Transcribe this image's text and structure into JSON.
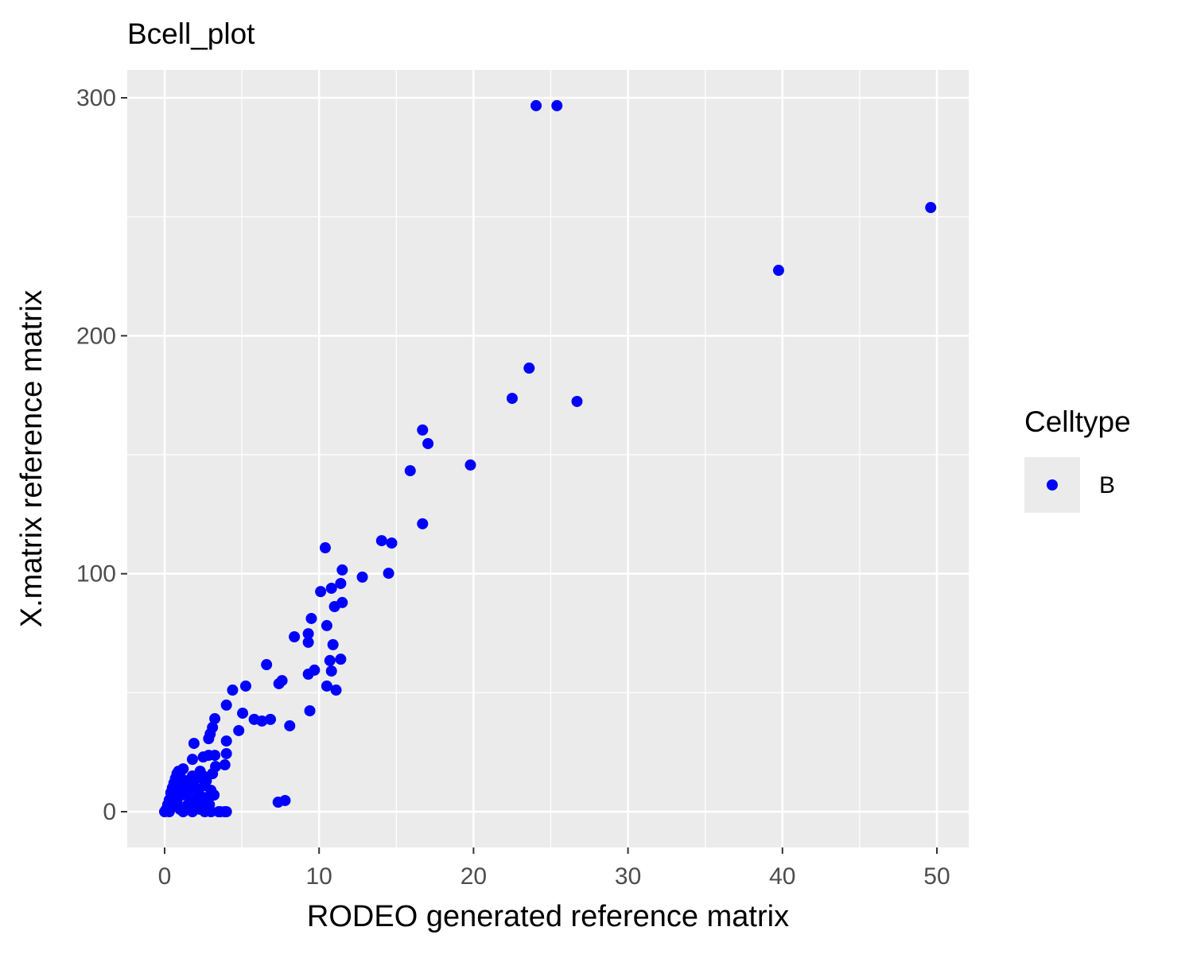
{
  "chart_data": {
    "type": "scatter",
    "title": "Bcell_plot",
    "x_label": "RODEO generated reference matrix",
    "y_label": "X.matrix reference matrix",
    "legend_title": "Celltype",
    "legend": "right",
    "grid": true,
    "xlim": [
      -2.42,
      52.06
    ],
    "ylim": [
      -15.03,
      311.7
    ],
    "xticks": [
      0,
      10,
      20,
      30,
      40,
      50
    ],
    "yticks": [
      0,
      100,
      200,
      300
    ],
    "minor_xticks": [
      5,
      15,
      25,
      35,
      45
    ],
    "minor_yticks": [
      50,
      150,
      250
    ],
    "series": [
      {
        "name": "B",
        "color": "#0000FF",
        "x": [
          24.05,
          25.4,
          49.6,
          39.75,
          23.6,
          22.5,
          26.7,
          16.7,
          17.05,
          19.8,
          15.9,
          16.7,
          10.4,
          14.05,
          14.7,
          11.5,
          14.5,
          12.8,
          11.4,
          10.8,
          10.1,
          11.5,
          11.0,
          9.5,
          10.5,
          9.3,
          8.4,
          9.3,
          10.9,
          10.7,
          11.4,
          6.6,
          9.7,
          9.3,
          10.8,
          7.6,
          7.4,
          10.5,
          11.1,
          5.25,
          4.4,
          4.0,
          5.05,
          9.4,
          5.8,
          6.3,
          6.85,
          8.1,
          4.8,
          3.25,
          3.1,
          2.95,
          2.85,
          4.0,
          1.9,
          7.35,
          7.8,
          3.9,
          4.0,
          2.85,
          3.25,
          2.5,
          1.8,
          4.0,
          3.5,
          0,
          0.1,
          0.2,
          0.3,
          0.4,
          0.5,
          0.6,
          0.7,
          0.8,
          0.9,
          1.0,
          1.1,
          1.2,
          1.3,
          1.4,
          1.5,
          1.6,
          1.7,
          1.8,
          1.9,
          2.0,
          2.1,
          2.2,
          2.3,
          2.4,
          2.5,
          2.6,
          2.7,
          2.8,
          2.9,
          3.0,
          3.1,
          3.2,
          0.3,
          0.5,
          0.8,
          1.0,
          1.2,
          1.5,
          1.8,
          2.0,
          2.3,
          2.6,
          3.0,
          0.6,
          0.9,
          1.1,
          1.4,
          1.7,
          2.2,
          2.5,
          3.3,
          3.6,
          3.9
        ],
        "y": [
          296.7,
          296.7,
          253.9,
          227.5,
          186.4,
          173.7,
          172.4,
          160.4,
          154.7,
          145.7,
          143.3,
          121.0,
          110.9,
          113.9,
          112.9,
          101.6,
          100.2,
          98.6,
          95.9,
          93.9,
          92.5,
          87.9,
          86.2,
          81.2,
          78.2,
          74.8,
          73.5,
          71.2,
          70.2,
          63.5,
          64.1,
          61.8,
          59.5,
          57.8,
          59.1,
          55.1,
          53.8,
          52.8,
          51.1,
          52.8,
          51.1,
          44.8,
          41.4,
          42.4,
          38.8,
          38.1,
          38.8,
          36.1,
          34.1,
          39.1,
          35.4,
          32.7,
          30.7,
          29.7,
          28.7,
          4.0,
          4.7,
          19.7,
          24.4,
          23.7,
          23.7,
          23,
          22,
          0,
          0,
          0,
          1,
          3,
          5,
          8,
          10,
          12,
          14,
          16,
          17,
          15,
          13,
          18,
          11,
          9,
          7,
          6,
          12,
          15,
          4,
          10,
          14,
          8,
          17,
          2,
          6,
          11,
          13,
          5,
          3,
          9,
          16,
          7,
          0,
          2,
          4,
          1,
          0,
          3,
          0,
          2,
          1,
          0,
          0,
          6,
          9,
          7,
          13,
          2,
          5,
          15,
          19,
          0,
          0
        ]
      }
    ]
  }
}
